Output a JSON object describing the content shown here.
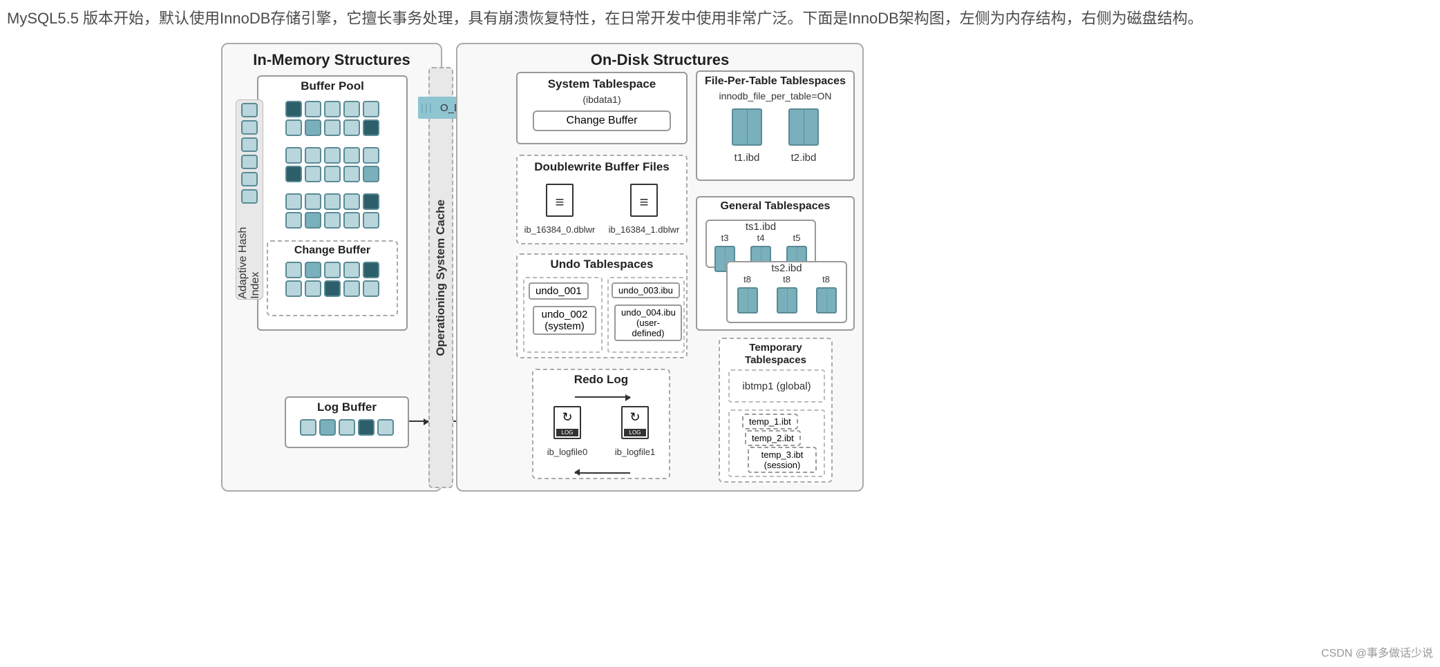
{
  "intro": "MySQL5.5 版本开始，默认使用InnoDB存储引擎，它擅长事务处理，具有崩溃恢复特性，在日常开发中使用非常广泛。下面是InnoDB架构图，左侧为内存结构，右侧为磁盘结构。",
  "inmem": {
    "title": "In-Memory Structures",
    "bufferpool": "Buffer Pool",
    "changebuf": "Change Buffer",
    "logbuf": "Log Buffer",
    "ahi": "Adaptive Hash Index"
  },
  "osc": "Operationing System Cache",
  "odirect": "O_DIRECT",
  "ondisk": {
    "title": "On-Disk Structures",
    "systs": {
      "title": "System Tablespace",
      "sub": "(ibdata1)",
      "cb": "Change Buffer"
    },
    "fpt": {
      "title": "File-Per-Table Tablespaces",
      "sub": "innodb_file_per_table=ON",
      "t1": "t1.ibd",
      "t2": "t2.ibd"
    },
    "dblwr": {
      "title": "Doublewrite Buffer Files",
      "f1": "ib_16384_0.dblwr",
      "f2": "ib_16384_1.dblwr"
    },
    "gents": {
      "title": "General Tablespaces",
      "ts1": "ts1.ibd",
      "ts2": "ts2.ibd",
      "t3": "t3",
      "t4": "t4",
      "t5": "t5",
      "t8a": "t8",
      "t8b": "t8",
      "t8c": "t8"
    },
    "undo": {
      "title": "Undo Tablespaces",
      "u1": "undo_001",
      "u2": "undo_002 (system)",
      "u3": "undo_003.ibu",
      "u4": "undo_004.ibu (user-defined)"
    },
    "redo": {
      "title": "Redo Log",
      "f1": "ib_logfile0",
      "f2": "ib_logfile1"
    },
    "tempts": {
      "title": "Temporary Tablespaces",
      "g": "ibtmp1 (global)",
      "s1": "temp_1.ibt",
      "s2": "temp_2.ibt",
      "s3": "temp_3.ibt (session)"
    }
  },
  "colors": {
    "cell_border": "#5a8a95",
    "light": "#b8d6dc",
    "mid": "#79b0bc",
    "dark": "#2d5f6b",
    "panel_bg": "#f8f8f8",
    "dash": "#aaaaaa"
  },
  "watermark": "CSDN @事多做话少说",
  "buffer_grid": [
    [
      3,
      1,
      1,
      1,
      1
    ],
    [
      1,
      2,
      1,
      1,
      3
    ],
    [
      1,
      1,
      1,
      1,
      1
    ],
    [
      3,
      1,
      1,
      1,
      2
    ],
    [
      1,
      1,
      1,
      1,
      3
    ],
    [
      1,
      2,
      1,
      1,
      1
    ]
  ],
  "change_grid": [
    [
      1,
      2,
      1,
      1,
      3
    ],
    [
      1,
      1,
      3,
      1,
      1
    ]
  ],
  "log_grid": [
    [
      1,
      2,
      1,
      3,
      1
    ]
  ]
}
